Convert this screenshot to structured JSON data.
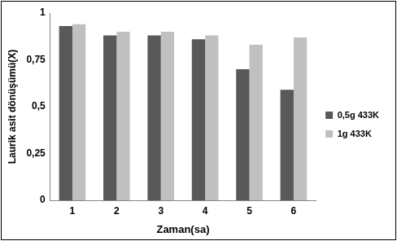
{
  "chart_data": {
    "type": "bar",
    "x_label": "Zaman(sa)",
    "y_label": "Laurik asit dönüşümü(X)",
    "categories": [
      "1",
      "2",
      "3",
      "4",
      "5",
      "6"
    ],
    "series": [
      {
        "name": "0,5g 433K",
        "color": "#595959",
        "values": [
          0.93,
          0.88,
          0.88,
          0.86,
          0.7,
          0.59
        ]
      },
      {
        "name": "1g 433K",
        "color": "#c0c0c0",
        "values": [
          0.94,
          0.9,
          0.9,
          0.88,
          0.83,
          0.87
        ]
      }
    ],
    "ylim": [
      0,
      1
    ],
    "yticks": [
      0,
      {
        "value": 0.25,
        "label": "0,25"
      },
      {
        "value": 0.5,
        "label": "0,5"
      },
      {
        "value": 0.75,
        "label": "0,75"
      },
      1
    ],
    "grid": false,
    "legend": "right"
  }
}
